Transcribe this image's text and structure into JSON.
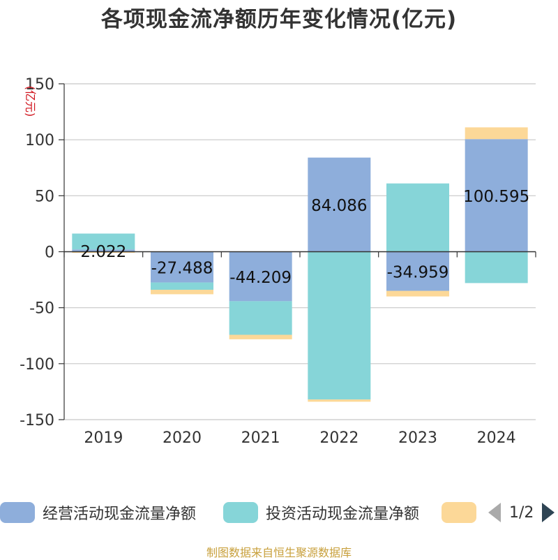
{
  "header": {
    "title": "各项现金流净额历年变化情况(亿元)"
  },
  "chart_data": {
    "type": "bar",
    "stacked": true,
    "unit_label": "(亿元)",
    "categories": [
      "2019",
      "2020",
      "2021",
      "2022",
      "2023",
      "2024"
    ],
    "ylim": [
      -150,
      150
    ],
    "yticks": [
      -150,
      -100,
      -50,
      0,
      50,
      100,
      150
    ],
    "grid": true,
    "legend_position": "bottom",
    "series": [
      {
        "name": "经营活动现金流量净额",
        "color": "#8eaedb",
        "values": [
          2.022,
          -27.488,
          -44.209,
          84.086,
          -34.959,
          100.595
        ],
        "labels": [
          "2.022",
          "-27.488",
          "-44.209",
          "84.086",
          "-34.959",
          "100.595"
        ]
      },
      {
        "name": "投资活动现金流量净额",
        "color": "#86d5d8",
        "values": [
          14.2,
          -6.5,
          -30.0,
          -132.0,
          61.0,
          -28.0
        ]
      },
      {
        "color": "#fcd898",
        "values": [
          -1.0,
          -4.0,
          -4.0,
          -2.0,
          -5.0,
          10.5
        ]
      }
    ]
  },
  "legend": {
    "items": [
      {
        "label": "经营活动现金流量净额",
        "color": "#8eaedb"
      },
      {
        "label": "投资活动现金流量净额",
        "color": "#86d5d8"
      },
      {
        "label": "",
        "color": "#fcd898"
      }
    ],
    "pager_text": "1/2"
  },
  "footer": {
    "source": "制图数据来自恒生聚源数据库"
  }
}
